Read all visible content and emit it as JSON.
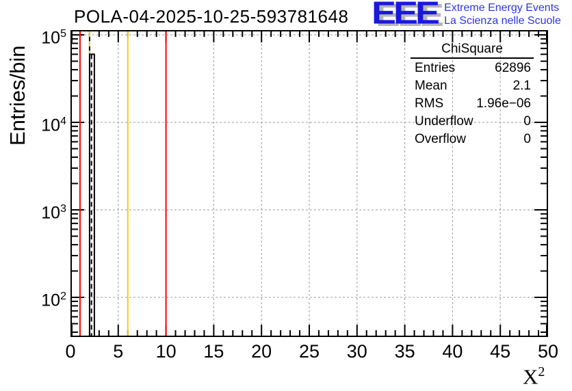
{
  "header": {
    "title": "POLA-04-2025-10-25-593781648"
  },
  "logo": {
    "eee": "EEE",
    "line1": "Extreme Energy Events",
    "line2": "La Scienza nelle Scuole",
    "eee_color": "#1a18dd",
    "eee_shadow": "#b5b5b5",
    "text_color": "#2b35e0"
  },
  "stats": {
    "title": "ChiSquare",
    "rows": [
      {
        "label": "Entries",
        "value": "62896"
      },
      {
        "label": "Mean",
        "value": "2.1"
      },
      {
        "label": "RMS",
        "value": "1.96e−06"
      },
      {
        "label": "Underflow",
        "value": "0"
      },
      {
        "label": "Overflow",
        "value": "0"
      }
    ]
  },
  "chart_data": {
    "type": "bar",
    "title": "POLA-04-2025-10-25-593781648",
    "xlabel": "X^2",
    "xlabel_base": "X",
    "xlabel_sup": "2",
    "ylabel": "Entries/bin",
    "x_range": [
      0,
      50
    ],
    "x_major_step": 5,
    "x_minor_step": 1,
    "x_tick_labels": [
      0,
      5,
      10,
      15,
      20,
      25,
      30,
      35,
      40,
      45,
      50
    ],
    "y_scale": "log",
    "y_tick_labels": [
      "10^2",
      "10^3",
      "10^4",
      "10^5"
    ],
    "y_decades": [
      2,
      3,
      4,
      5
    ],
    "ylim_exp": [
      1.547,
      5.055
    ],
    "grid": {
      "on": true,
      "color": "#9a9a9a",
      "dashed": true
    },
    "frame_color": "#000000",
    "histogram": {
      "color": "#000000",
      "bins": [
        {
          "x_low": 2.0,
          "x_high": 2.5,
          "count": 60000
        }
      ]
    },
    "overlay_dashed_histogram": {
      "color": "#000000",
      "x": 2.2,
      "count": 60000
    },
    "reference_lines": [
      {
        "x": 1,
        "color": "#ff0000",
        "style": "solid",
        "extent": "full"
      },
      {
        "x": 2,
        "color": "#ffcc00",
        "style": "dashed",
        "extent": "above_peak",
        "peak_count": 60000
      },
      {
        "x": 6,
        "color": "#ffcc00",
        "style": "solid",
        "extent": "full"
      },
      {
        "x": 10,
        "color": "#ff0000",
        "style": "solid",
        "extent": "full"
      }
    ]
  }
}
